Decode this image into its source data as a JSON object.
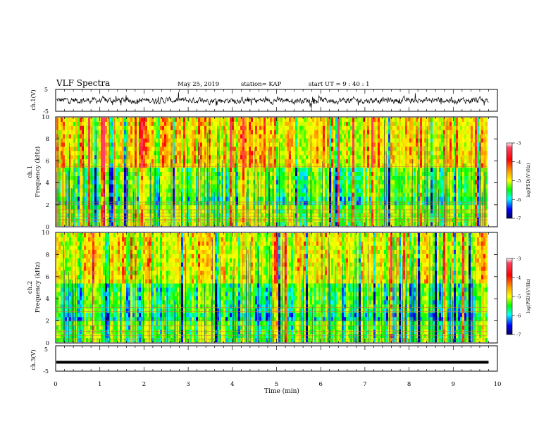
{
  "header": {
    "title": "VLF Spectra",
    "date": "May 25, 2019",
    "station": "station= KAP",
    "start": "start  UT =   9 : 40 : 1"
  },
  "chart_data": [
    {
      "type": "line",
      "panel": "ch1-waveform",
      "ylabel": "ch.1(V)",
      "ylim": [
        -5,
        5
      ],
      "yticks": [
        "5",
        "-5"
      ],
      "xlim": [
        0,
        10
      ],
      "x_extent_min": 9.8,
      "note": "noisy trace centred near 0 V"
    },
    {
      "type": "heatmap",
      "panel": "ch1-spectrogram",
      "ylabel_line1": "ch.1",
      "ylabel_line2": "Frequency (kHz)",
      "ylim": [
        0,
        10
      ],
      "yticks": [
        "0",
        "2",
        "4",
        "6",
        "8",
        "10"
      ],
      "xlim": [
        0,
        10
      ],
      "x_extent_min": 9.8,
      "colorbar": {
        "label": "log(PSD)(V²/Hz)",
        "range": [
          -7,
          -3
        ],
        "ticks": [
          "-3",
          "-4",
          "-5",
          "-6",
          "-7"
        ],
        "colormap": [
          "#ff00ff",
          "#ff0000",
          "#ffa000",
          "#ffff00",
          "#00ff00",
          "#00ffff",
          "#0000ff",
          "#00008b"
        ]
      },
      "horizontal_lines_khz": [
        0.1,
        0.3,
        0.5,
        0.6,
        0.9,
        1.2,
        1.5,
        2.0,
        2.2,
        5.5
      ]
    },
    {
      "type": "heatmap",
      "panel": "ch2-spectrogram",
      "ylabel_line1": "ch.2",
      "ylabel_line2": "Frequency (kHz)",
      "ylim": [
        0,
        10
      ],
      "yticks": [
        "0",
        "2",
        "4",
        "6",
        "8",
        "10"
      ],
      "xlim": [
        0,
        10
      ],
      "x_extent_min": 9.8,
      "colorbar": {
        "label": "log(PSD)(V²/Hz)",
        "range": [
          -7,
          -3
        ],
        "ticks": [
          "-3",
          "-4",
          "-5",
          "-6",
          "-7"
        ]
      },
      "horizontal_lines_khz": [
        0.3,
        0.6,
        1.0,
        1.5,
        2.0,
        2.8,
        3.2
      ]
    },
    {
      "type": "line",
      "panel": "ch3-waveform",
      "ylabel": "ch.3(V)",
      "ylim": [
        -5,
        5
      ],
      "yticks": [
        "5",
        "-5"
      ],
      "xlim": [
        0,
        10
      ],
      "x_extent_min": 9.8,
      "constant_value_v": -1.5
    }
  ],
  "xaxis": {
    "label": "Time (min)",
    "ticks": [
      "0",
      "1",
      "2",
      "3",
      "4",
      "5",
      "6",
      "7",
      "8",
      "9",
      "10"
    ]
  }
}
